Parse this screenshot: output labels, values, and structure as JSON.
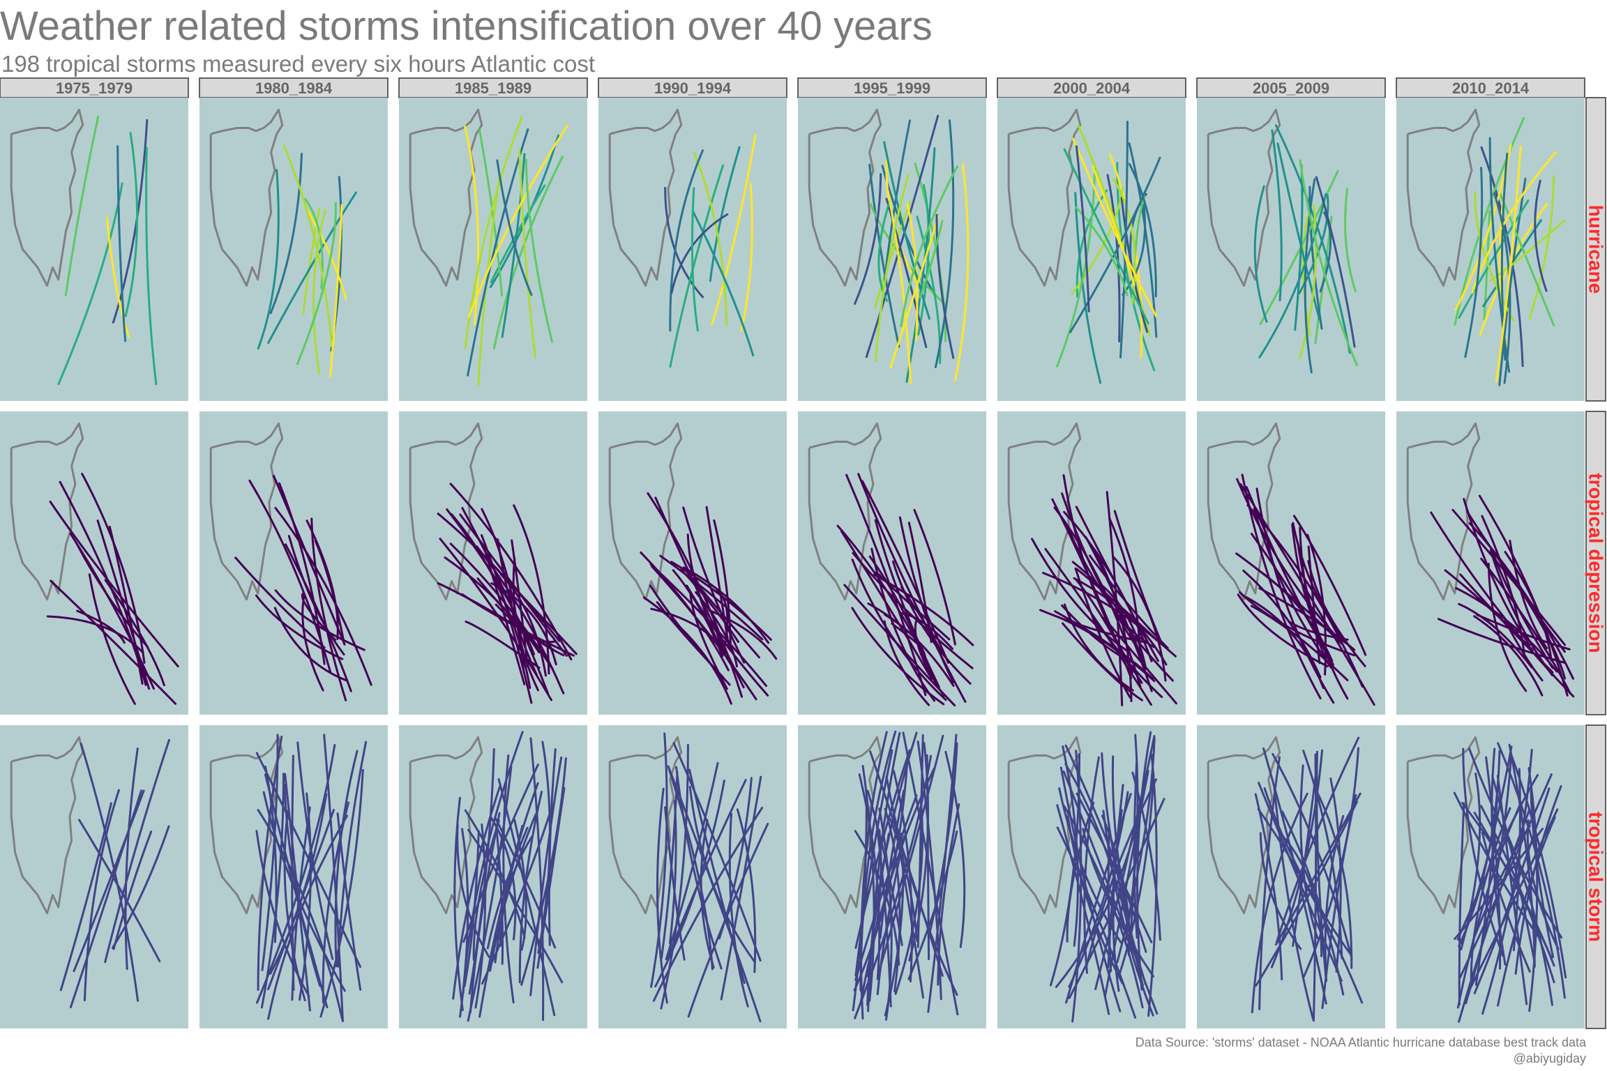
{
  "title": "Weather related storms intensification over 40 years",
  "subtitle": "198 tropical storms measured every six hours Atlantic cost",
  "caption": {
    "line1": "Data Source: 'storms' dataset - NOAA Atlantic hurricane database best track data",
    "line2": "@abiyugiday"
  },
  "colors": {
    "panel_bg": "#b4cecf",
    "strip_bg": "#d9d9d9",
    "coast": "#808080",
    "row_label": "#ff2a2a",
    "hurricane_palette": [
      "#3b528b",
      "#2c728e",
      "#21908d",
      "#27ad81",
      "#5dc963",
      "#aadc32",
      "#fde725"
    ],
    "tropical_depression": "#440154",
    "tropical_storm": "#414487"
  },
  "chart_data": {
    "type": "small-multiples-map",
    "columns": [
      "1975_1979",
      "1980_1984",
      "1985_1989",
      "1990_1994",
      "1995_1999",
      "2000_2004",
      "2005_2009",
      "2010_2014"
    ],
    "rows": [
      "hurricane",
      "tropical depression",
      "tropical storm"
    ],
    "storms_total": 198,
    "track_counts": {
      "hurricane": [
        7,
        11,
        13,
        10,
        24,
        22,
        17,
        20
      ],
      "tropical depression": [
        12,
        15,
        27,
        25,
        25,
        32,
        25,
        22
      ],
      "tropical storm": [
        10,
        26,
        33,
        22,
        40,
        38,
        26,
        37
      ]
    }
  }
}
